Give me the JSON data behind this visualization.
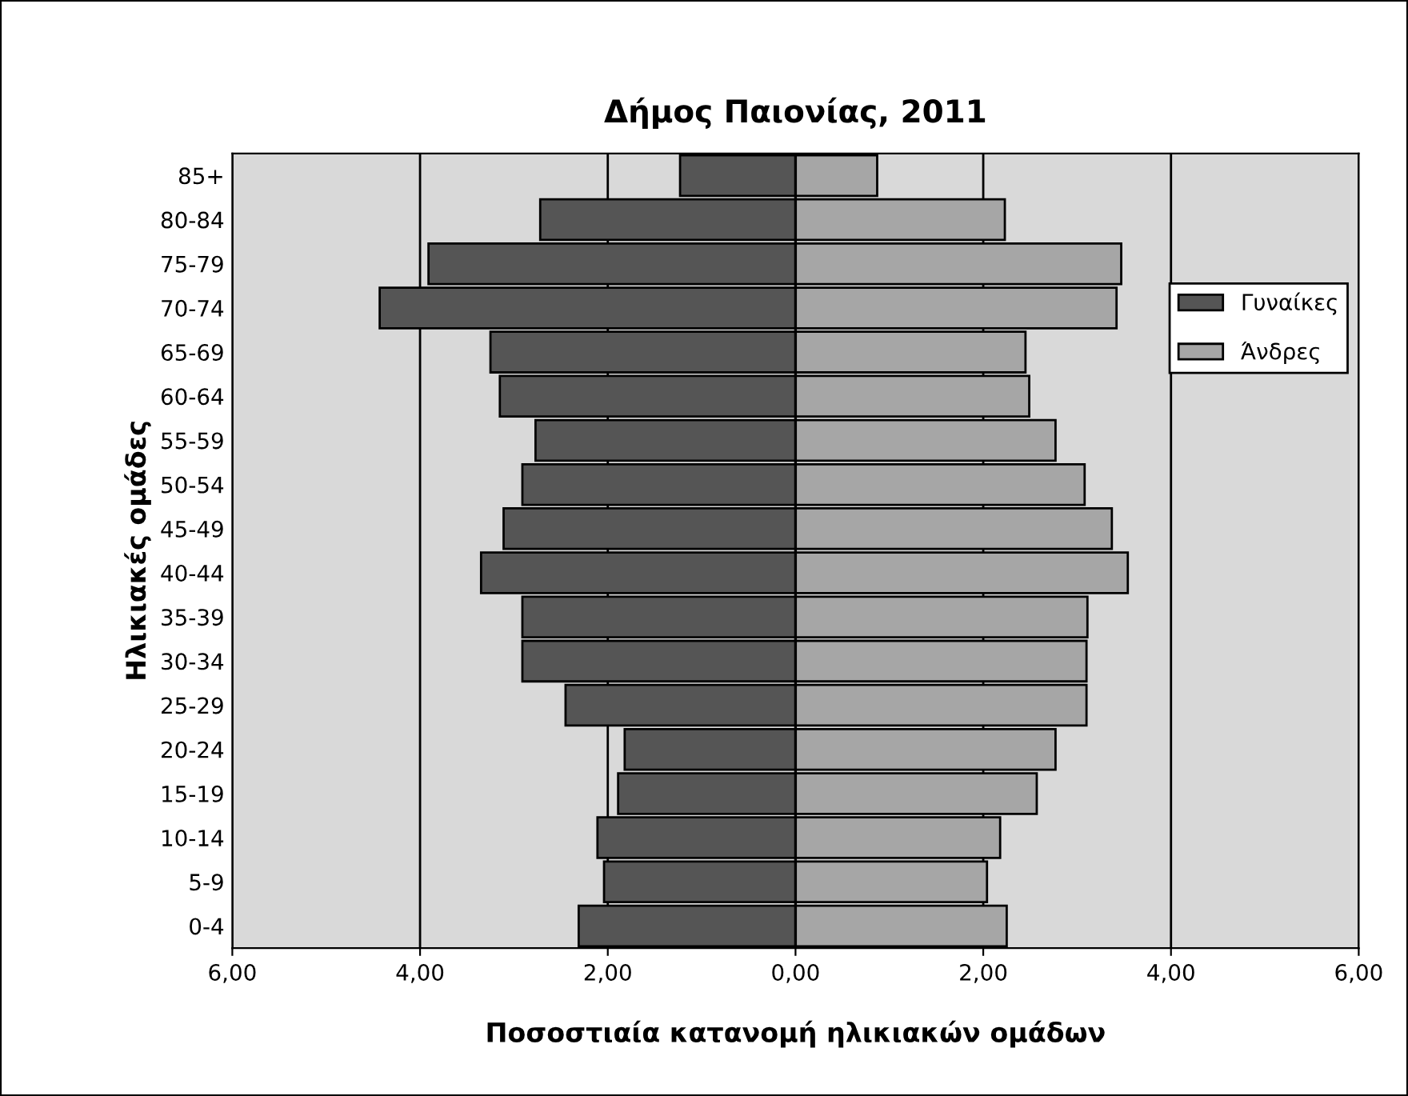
{
  "chart_data": {
    "type": "bar",
    "orientation": "horizontal",
    "stacked": true,
    "title": "Δήμος Παιονίας, 2011",
    "xlabel": "Ποσοστιαία κατανομή ηλικιακών ομάδων",
    "ylabel": "Ηλικιακές ομάδες",
    "categories": [
      "85+",
      "80-84",
      "75-79",
      "70-74",
      "65-69",
      "60-64",
      "55-59",
      "50-54",
      "45-49",
      "40-44",
      "35-39",
      "30-34",
      "25-29",
      "20-24",
      "15-19",
      "10-14",
      "5-9",
      "0-4"
    ],
    "series": [
      {
        "name": "Γυναίκες",
        "color": "#555555",
        "values": [
          -1.23,
          -2.72,
          -3.91,
          -4.43,
          -3.25,
          -3.15,
          -2.77,
          -2.91,
          -3.11,
          -3.35,
          -2.91,
          -2.91,
          -2.45,
          -1.82,
          -1.89,
          -2.11,
          -2.04,
          -2.31
        ]
      },
      {
        "name": "Άνδρες",
        "color": "#a6a6a6",
        "values": [
          0.87,
          2.23,
          3.47,
          3.42,
          2.45,
          2.49,
          2.77,
          3.08,
          3.37,
          3.54,
          3.11,
          3.1,
          3.1,
          2.77,
          2.57,
          2.18,
          2.04,
          2.25
        ]
      }
    ],
    "xlim": [
      -6,
      6
    ],
    "xticks": [
      {
        "value": -6,
        "label": "6,00"
      },
      {
        "value": -4,
        "label": "4,00"
      },
      {
        "value": -2,
        "label": "2,00"
      },
      {
        "value": 0,
        "label": "0,00"
      },
      {
        "value": 2,
        "label": "2,00"
      },
      {
        "value": 4,
        "label": "4,00"
      },
      {
        "value": 6,
        "label": "6,00"
      }
    ],
    "grid": "x",
    "legend": "right"
  }
}
